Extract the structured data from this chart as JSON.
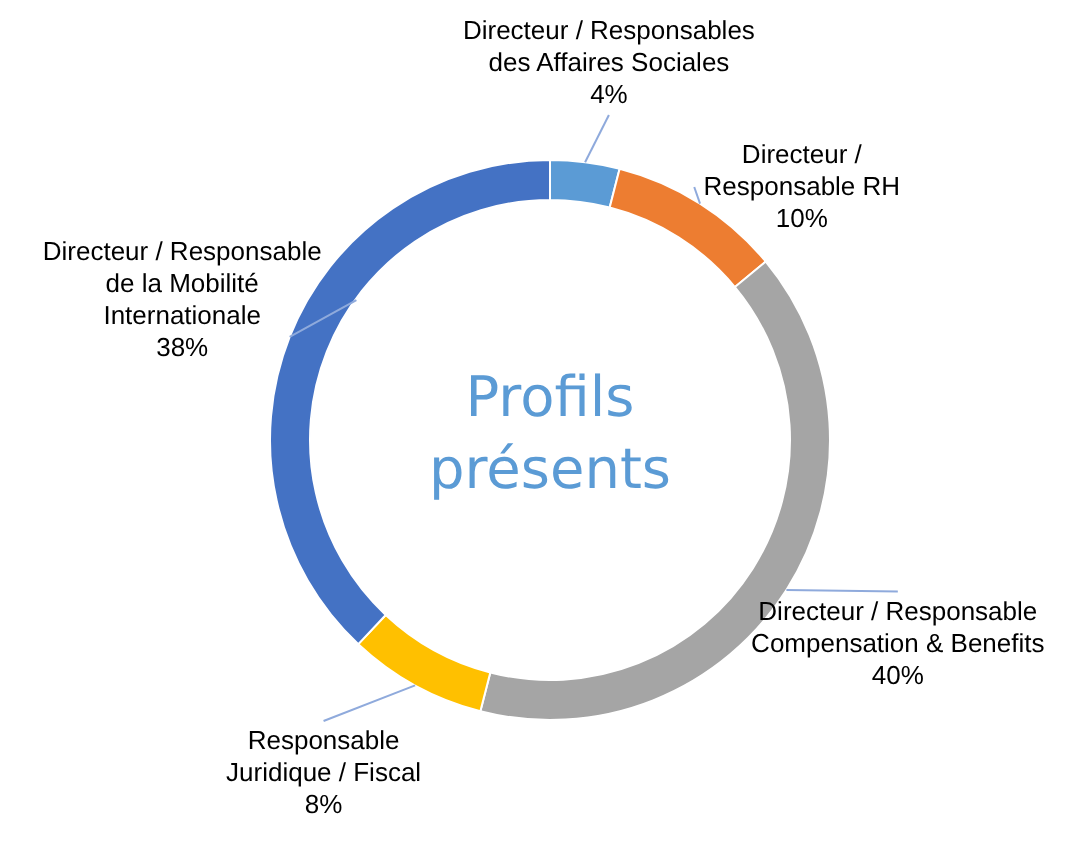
{
  "chart_data": {
    "type": "donut",
    "title": "Profils\nprésents",
    "categories": [
      "Directeur / Responsables\ndes Affaires Sociales",
      "Directeur /\nResponsable RH",
      "Directeur / Responsable\nCompensation & Benefits",
      "Responsable\nJuridique / Fiscal",
      "Directeur / Responsable\nde la Mobilité\nInternationale"
    ],
    "values": [
      4,
      10,
      40,
      8,
      38
    ],
    "value_labels": [
      "4%",
      "10%",
      "40%",
      "8%",
      "38%"
    ],
    "colors": [
      "#5b9bd5",
      "#ed7d31",
      "#a5a5a5",
      "#ffc000",
      "#4472c4"
    ]
  }
}
